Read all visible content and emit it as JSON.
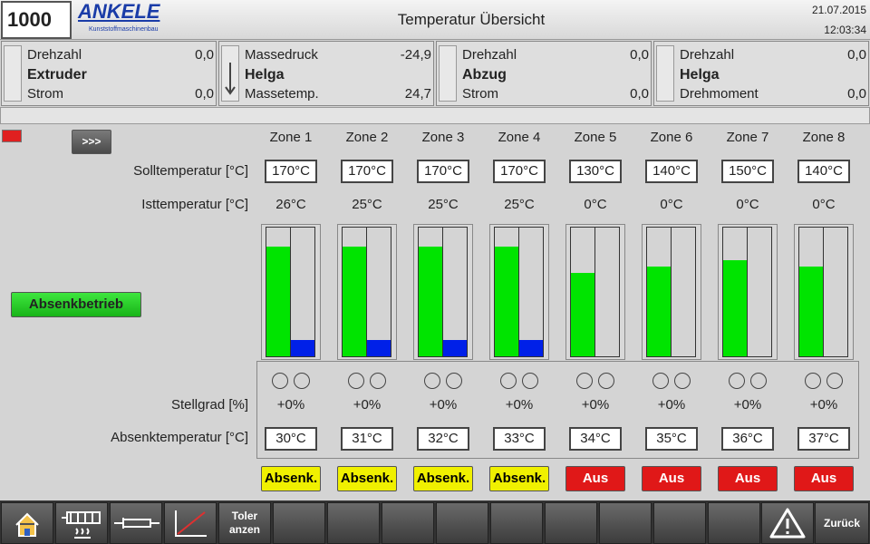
{
  "header": {
    "counter": "1000",
    "logo": "ANKELE",
    "logo_sub": "Kunststoffmaschinenbau",
    "title": "Temperatur Übersicht",
    "date": "21.07.2015",
    "time": "12:03:34"
  },
  "info_panels": [
    {
      "top_label": "Drehzahl",
      "top_value": "0,0",
      "name": "Extruder",
      "bottom_label": "Strom",
      "bottom_value": "0,0"
    },
    {
      "top_label": "Massedruck",
      "top_value": "-24,9",
      "name": "Helga",
      "bottom_label": "Massetemp.",
      "bottom_value": "24,7"
    },
    {
      "top_label": "Drehzahl",
      "top_value": "0,0",
      "name": "Abzug",
      "bottom_label": "Strom",
      "bottom_value": "0,0"
    },
    {
      "top_label": "Drehzahl",
      "top_value": "0,0",
      "name": "Helga",
      "bottom_label": "Drehmoment",
      "bottom_value": "0,0"
    }
  ],
  "expand_button": ">>>",
  "setback_mode_button": "Absenkbetrieb",
  "row_labels": {
    "setpoint": "Solltemperatur [°C]",
    "actual": "Isttemperatur [°C]",
    "output": "Stellgrad [%]",
    "setback": "Absenktemperatur [°C]"
  },
  "bar_scale": [
    0,
    200
  ],
  "zones": [
    {
      "name": "Zone 1",
      "setpoint": {
        "value": 170,
        "label": "170°C"
      },
      "actual": {
        "value": 26,
        "label": "26°C"
      },
      "output": "+0%",
      "setback": "30°C",
      "mode": "Absenk.",
      "mode_color": "#f0f000"
    },
    {
      "name": "Zone 2",
      "setpoint": {
        "value": 170,
        "label": "170°C"
      },
      "actual": {
        "value": 25,
        "label": "25°C"
      },
      "output": "+0%",
      "setback": "31°C",
      "mode": "Absenk.",
      "mode_color": "#f0f000"
    },
    {
      "name": "Zone 3",
      "setpoint": {
        "value": 170,
        "label": "170°C"
      },
      "actual": {
        "value": 25,
        "label": "25°C"
      },
      "output": "+0%",
      "setback": "32°C",
      "mode": "Absenk.",
      "mode_color": "#f0f000"
    },
    {
      "name": "Zone 4",
      "setpoint": {
        "value": 170,
        "label": "170°C"
      },
      "actual": {
        "value": 25,
        "label": "25°C"
      },
      "output": "+0%",
      "setback": "33°C",
      "mode": "Absenk.",
      "mode_color": "#f0f000"
    },
    {
      "name": "Zone 5",
      "setpoint": {
        "value": 130,
        "label": "130°C"
      },
      "actual": {
        "value": 0,
        "label": "0°C"
      },
      "output": "+0%",
      "setback": "34°C",
      "mode": "Aus",
      "mode_color": "#e01818"
    },
    {
      "name": "Zone 6",
      "setpoint": {
        "value": 140,
        "label": "140°C"
      },
      "actual": {
        "value": 0,
        "label": "0°C"
      },
      "output": "+0%",
      "setback": "35°C",
      "mode": "Aus",
      "mode_color": "#e01818"
    },
    {
      "name": "Zone 7",
      "setpoint": {
        "value": 150,
        "label": "150°C"
      },
      "actual": {
        "value": 0,
        "label": "0°C"
      },
      "output": "+0%",
      "setback": "36°C",
      "mode": "Aus",
      "mode_color": "#e01818"
    },
    {
      "name": "Zone 8",
      "setpoint": {
        "value": 140,
        "label": "140°C"
      },
      "actual": {
        "value": 0,
        "label": "0°C"
      },
      "output": "+0%",
      "setback": "37°C",
      "mode": "Aus",
      "mode_color": "#e01818"
    }
  ],
  "toolbar": {
    "tolerances": [
      "Toler",
      "anzen"
    ],
    "back": "Zurück"
  }
}
